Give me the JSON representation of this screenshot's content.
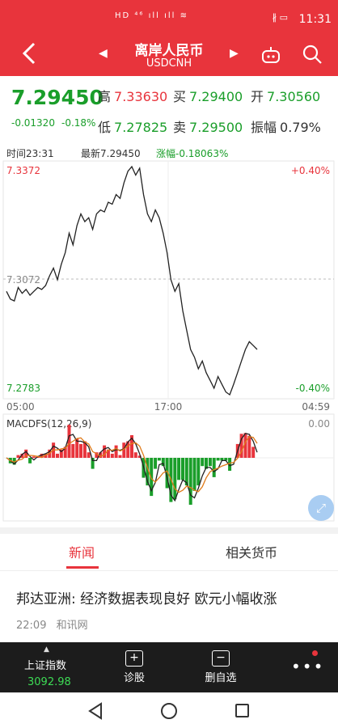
{
  "status_bar": {
    "time": "11:31",
    "left_icons": "HD ⁴⁶ ıll ıll ≋",
    "right_icons": "∦ ▭"
  },
  "header": {
    "title": "离岸人民币",
    "subtitle": "USDCNH"
  },
  "quote": {
    "price": "7.29450",
    "change": "-0.01320",
    "change_pct": "-0.18%",
    "high_label": "高",
    "high": "7.33630",
    "buy_label": "买",
    "buy": "7.29400",
    "open_label": "开",
    "open": "7.30560",
    "low_label": "低",
    "low": "7.27825",
    "sell_label": "卖",
    "sell": "7.29500",
    "amp_label": "振幅",
    "amp": "0.79%"
  },
  "chart_header": {
    "time": "时间23:31",
    "latest": "最新7.29450",
    "change": "涨幅-0.18063%"
  },
  "chart_data": {
    "type": "line",
    "y_top_label": "7.3372",
    "y_mid_label": "7.3072",
    "y_bottom_label": "7.2783",
    "pct_top": "+0.40%",
    "pct_bottom": "-0.40%",
    "x_labels": [
      "05:00",
      "17:00",
      "04:59"
    ],
    "ylim": [
      7.2783,
      7.3372
    ],
    "values": [
      7.305,
      7.303,
      7.3025,
      7.306,
      7.3045,
      7.3055,
      7.304,
      7.305,
      7.306,
      7.3055,
      7.3065,
      7.309,
      7.311,
      7.308,
      7.312,
      7.315,
      7.32,
      7.317,
      7.322,
      7.325,
      7.323,
      7.324,
      7.321,
      7.325,
      7.326,
      7.3255,
      7.328,
      7.3275,
      7.33,
      7.329,
      7.333,
      7.336,
      7.3372,
      7.335,
      7.3368,
      7.33,
      7.325,
      7.323,
      7.326,
      7.324,
      7.32,
      7.315,
      7.308,
      7.305,
      7.307,
      7.3,
      7.295,
      7.29,
      7.288,
      7.285,
      7.287,
      7.284,
      7.282,
      7.28,
      7.283,
      7.281,
      7.279,
      7.2783,
      7.281,
      7.284,
      7.287,
      7.29,
      7.292,
      7.291,
      7.29
    ],
    "macd_label": "MACDFS(12,26,9)",
    "macd_right_label": "0.00"
  },
  "tabs": {
    "news": "新闻",
    "related": "相关货币"
  },
  "news": {
    "title": "邦达亚洲: 经济数据表现良好 欧元小幅收涨",
    "time": "22:09",
    "source": "和讯网"
  },
  "toolbar": {
    "index_label": "上证指数",
    "index_value": "3092.98",
    "diagnose": "诊股",
    "remove": "删自选",
    "more": "•••"
  },
  "colors": {
    "accent": "#e8343c",
    "down": "#1a9e2a"
  }
}
